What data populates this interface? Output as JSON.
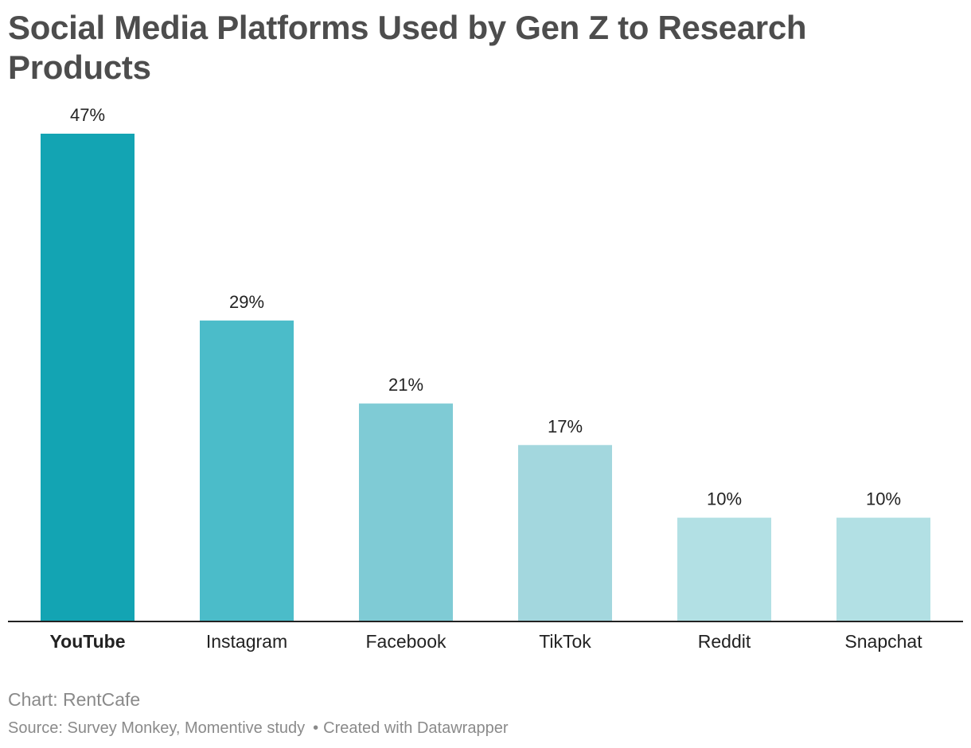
{
  "chart_data": {
    "type": "bar",
    "title": "Social Media Platforms Used by Gen Z to Research Products",
    "categories": [
      "YouTube",
      "Instagram",
      "Facebook",
      "TikTok",
      "Reddit",
      "Snapchat"
    ],
    "values": [
      47,
      29,
      21,
      17,
      10,
      10
    ],
    "value_labels": [
      "47%",
      "29%",
      "21%",
      "17%",
      "10%",
      "10%"
    ],
    "bar_colors": [
      "#13a4b3",
      "#4bbcc9",
      "#7fcbd5",
      "#a3d7de",
      "#b2e0e4",
      "#b2e0e4"
    ],
    "highlight_category": "YouTube",
    "unit": "%",
    "ylim": [
      0,
      47
    ],
    "xlabel": "",
    "ylabel": "",
    "grid": false,
    "legend": "none"
  },
  "footer": {
    "chart_credit": "Chart: RentCafe",
    "source": "Source: Survey Monkey, Momentive study",
    "separator": "•",
    "created_with": "Created with Datawrapper"
  }
}
